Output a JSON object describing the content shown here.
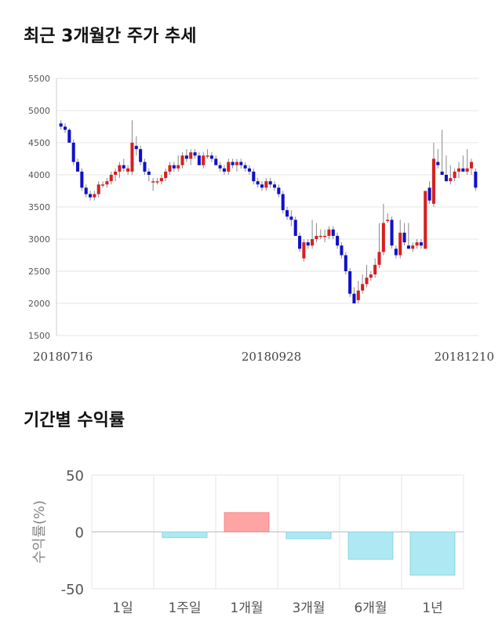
{
  "section1_title": "최근 3개월간 주가 추세",
  "section2_title": "기간별 수익률",
  "chart_data": [
    {
      "type": "candlestick",
      "ylim": [
        1500,
        5500
      ],
      "yticks": [
        1500,
        2000,
        2500,
        3000,
        3500,
        4000,
        4500,
        5000,
        5500
      ],
      "x_labels": [
        "20180716",
        "20180928",
        "20181210"
      ],
      "grid": true,
      "up_color": "#d62020",
      "down_color": "#1010c8",
      "candles": [
        [
          4800,
          4850,
          4700,
          4750
        ],
        [
          4750,
          4800,
          4650,
          4700
        ],
        [
          4700,
          4720,
          4500,
          4500
        ],
        [
          4500,
          4550,
          4150,
          4200
        ],
        [
          4200,
          4250,
          4050,
          4050
        ],
        [
          4050,
          4100,
          3750,
          3800
        ],
        [
          3800,
          3850,
          3650,
          3700
        ],
        [
          3700,
          3750,
          3600,
          3650
        ],
        [
          3650,
          3750,
          3600,
          3700
        ],
        [
          3700,
          3900,
          3650,
          3850
        ],
        [
          3850,
          3900,
          3800,
          3850
        ],
        [
          3850,
          3950,
          3800,
          3900
        ],
        [
          3900,
          4050,
          3850,
          4000
        ],
        [
          4000,
          4100,
          3900,
          4050
        ],
        [
          4050,
          4200,
          3950,
          4150
        ],
        [
          4150,
          4250,
          4050,
          4100
        ],
        [
          4050,
          4150,
          4000,
          4100
        ],
        [
          4050,
          4850,
          4000,
          4500
        ],
        [
          4450,
          4600,
          4300,
          4400
        ],
        [
          4400,
          4450,
          4150,
          4200
        ],
        [
          4200,
          4250,
          4000,
          4050
        ],
        [
          4050,
          4100,
          3900,
          4000
        ],
        [
          3900,
          3950,
          3750,
          3900
        ],
        [
          3900,
          3950,
          3850,
          3900
        ],
        [
          3900,
          4000,
          3850,
          3950
        ],
        [
          3950,
          4100,
          3900,
          4050
        ],
        [
          4050,
          4200,
          4000,
          4150
        ],
        [
          4150,
          4200,
          4050,
          4100
        ],
        [
          4100,
          4300,
          4050,
          4150
        ],
        [
          4150,
          4350,
          4100,
          4300
        ],
        [
          4300,
          4400,
          4200,
          4250
        ],
        [
          4250,
          4400,
          4150,
          4350
        ],
        [
          4350,
          4400,
          4250,
          4300
        ],
        [
          4300,
          4350,
          4150,
          4150
        ],
        [
          4150,
          4350,
          4100,
          4300
        ],
        [
          4300,
          4400,
          4250,
          4300
        ],
        [
          4300,
          4350,
          4200,
          4250
        ],
        [
          4250,
          4300,
          4150,
          4150
        ],
        [
          4150,
          4200,
          4050,
          4100
        ],
        [
          4100,
          4150,
          4000,
          4050
        ],
        [
          4050,
          4250,
          4000,
          4200
        ],
        [
          4200,
          4250,
          4100,
          4150
        ],
        [
          4150,
          4250,
          4050,
          4200
        ],
        [
          4200,
          4250,
          4100,
          4150
        ],
        [
          4150,
          4200,
          4050,
          4100
        ],
        [
          4100,
          4150,
          4000,
          4050
        ],
        [
          4050,
          4100,
          3850,
          3900
        ],
        [
          3900,
          3950,
          3800,
          3850
        ],
        [
          3850,
          3900,
          3750,
          3800
        ],
        [
          3800,
          3950,
          3750,
          3900
        ],
        [
          3900,
          3950,
          3800,
          3850
        ],
        [
          3850,
          3900,
          3750,
          3800
        ],
        [
          3800,
          3850,
          3650,
          3700
        ],
        [
          3700,
          3750,
          3400,
          3450
        ],
        [
          3450,
          3500,
          3300,
          3350
        ],
        [
          3350,
          3450,
          3200,
          3300
        ],
        [
          3300,
          3350,
          3050,
          3050
        ],
        [
          3050,
          3100,
          2800,
          2850
        ],
        [
          2700,
          3000,
          2650,
          2950
        ],
        [
          2950,
          3000,
          2850,
          2900
        ],
        [
          2900,
          3300,
          2850,
          3000
        ],
        [
          3000,
          3250,
          2950,
          3050
        ],
        [
          3050,
          3150,
          3000,
          3050
        ],
        [
          3050,
          3150,
          2950,
          3050
        ],
        [
          3050,
          3200,
          3000,
          3150
        ],
        [
          3150,
          3200,
          3000,
          3050
        ],
        [
          3050,
          3100,
          2850,
          2900
        ],
        [
          2900,
          2950,
          2700,
          2750
        ],
        [
          2750,
          2800,
          2450,
          2500
        ],
        [
          2500,
          2550,
          2100,
          2150
        ],
        [
          2150,
          2250,
          2000,
          2000
        ],
        [
          2050,
          2350,
          2000,
          2200
        ],
        [
          2200,
          2450,
          2150,
          2300
        ],
        [
          2300,
          2600,
          2250,
          2400
        ],
        [
          2400,
          2500,
          2350,
          2450
        ],
        [
          2450,
          2700,
          2400,
          2600
        ],
        [
          2600,
          3250,
          2550,
          2800
        ],
        [
          2800,
          3550,
          2750,
          3250
        ],
        [
          3300,
          3400,
          3250,
          3300
        ],
        [
          3300,
          3350,
          2850,
          2900
        ],
        [
          2850,
          2900,
          2700,
          2750
        ],
        [
          2750,
          3300,
          2700,
          3100
        ],
        [
          3100,
          3250,
          2900,
          2950
        ],
        [
          2900,
          3250,
          2850,
          2850
        ],
        [
          2850,
          2950,
          2800,
          2900
        ],
        [
          2900,
          3000,
          2850,
          2950
        ],
        [
          2950,
          3000,
          2850,
          2900
        ],
        [
          2850,
          3750,
          2850,
          3750
        ],
        [
          3800,
          3900,
          3550,
          3600
        ],
        [
          3550,
          4500,
          3500,
          4250
        ],
        [
          4200,
          4400,
          4100,
          4150
        ],
        [
          4050,
          4700,
          4000,
          4000
        ],
        [
          4000,
          4300,
          3900,
          3900
        ],
        [
          3900,
          4150,
          3850,
          3950
        ],
        [
          3950,
          4100,
          3900,
          4050
        ],
        [
          4050,
          4200,
          3950,
          4100
        ],
        [
          4100,
          4300,
          4050,
          4050
        ],
        [
          4050,
          4400,
          4000,
          4100
        ],
        [
          4100,
          4250,
          4000,
          4200
        ],
        [
          4050,
          4100,
          3750,
          3800
        ]
      ]
    },
    {
      "type": "bar",
      "categories": [
        "1일",
        "1주일",
        "1개월",
        "3개월",
        "6개월",
        "1년"
      ],
      "values": [
        0,
        -5,
        17,
        -6,
        -24,
        -38
      ],
      "ylim": [
        -50,
        50
      ],
      "yticks": [
        50,
        0,
        -50
      ],
      "ylabel": "수익률(%)",
      "positive_color": "#ffa4a4",
      "negative_color": "#aee9f3",
      "grid": true
    }
  ]
}
